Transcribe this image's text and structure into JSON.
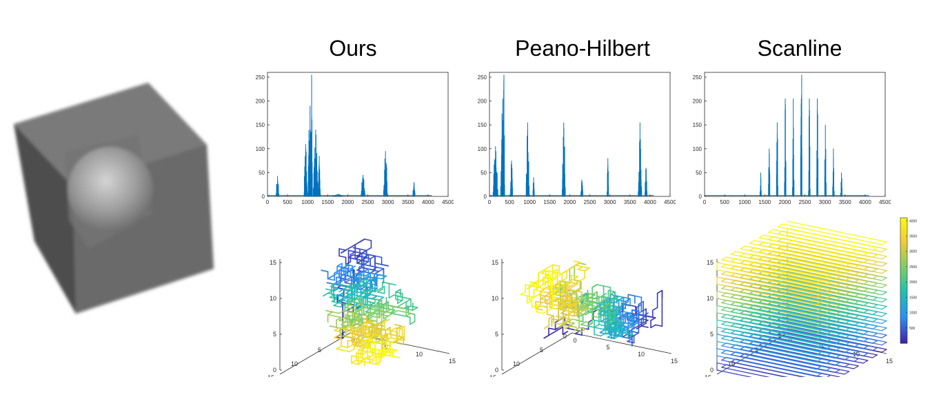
{
  "columns": [
    {
      "title": "Ours"
    },
    {
      "title": "Peano-Hilbert"
    },
    {
      "title": "Scanline"
    }
  ],
  "colorbar": {
    "ticks": [
      500,
      1000,
      1500,
      2000,
      2500,
      3000,
      3500,
      4000
    ],
    "range": [
      0,
      4096
    ],
    "colors": [
      "#3e26a8",
      "#2e8ef3",
      "#1fbfb5",
      "#7bcf63",
      "#f2c93a",
      "#f9fb0e"
    ]
  },
  "chart_data": [
    {
      "type": "bar",
      "panel": "Ours histogram",
      "xlim": [
        0,
        4500
      ],
      "ylim": [
        0,
        260
      ],
      "xticks": [
        0,
        500,
        1000,
        1500,
        2000,
        2500,
        3000,
        3500,
        4000,
        4500
      ],
      "yticks": [
        0,
        50,
        100,
        150,
        200,
        250
      ],
      "color": "#0072bd",
      "peaks": [
        {
          "x": 250,
          "width": 80,
          "height": 43
        },
        {
          "x": 950,
          "width": 80,
          "height": 110
        },
        {
          "x": 1060,
          "width": 110,
          "height": 190
        },
        {
          "x": 1100,
          "width": 40,
          "height": 255
        },
        {
          "x": 1200,
          "width": 120,
          "height": 140
        },
        {
          "x": 1290,
          "width": 60,
          "height": 85
        },
        {
          "x": 1750,
          "width": 300,
          "height": 5
        },
        {
          "x": 2380,
          "width": 100,
          "height": 45
        },
        {
          "x": 2940,
          "width": 100,
          "height": 95
        },
        {
          "x": 3650,
          "width": 60,
          "height": 30
        }
      ]
    },
    {
      "type": "bar",
      "panel": "Peano-Hilbert histogram",
      "xlim": [
        0,
        4500
      ],
      "ylim": [
        0,
        260
      ],
      "xticks": [
        0,
        500,
        1000,
        1500,
        2000,
        2500,
        3000,
        3500,
        4000,
        4500
      ],
      "yticks": [
        0,
        50,
        100,
        150,
        200,
        250
      ],
      "color": "#0072bd",
      "peaks": [
        {
          "x": 150,
          "width": 120,
          "height": 105
        },
        {
          "x": 330,
          "width": 100,
          "height": 205
        },
        {
          "x": 360,
          "width": 30,
          "height": 255
        },
        {
          "x": 550,
          "width": 60,
          "height": 75
        },
        {
          "x": 950,
          "width": 80,
          "height": 155
        },
        {
          "x": 1100,
          "width": 40,
          "height": 40
        },
        {
          "x": 1850,
          "width": 80,
          "height": 155
        },
        {
          "x": 2300,
          "width": 60,
          "height": 35
        },
        {
          "x": 2950,
          "width": 40,
          "height": 80
        },
        {
          "x": 3750,
          "width": 90,
          "height": 155
        },
        {
          "x": 3900,
          "width": 60,
          "height": 60
        }
      ]
    },
    {
      "type": "bar",
      "panel": "Scanline histogram",
      "xlim": [
        0,
        4500
      ],
      "ylim": [
        0,
        260
      ],
      "xticks": [
        0,
        500,
        1000,
        1500,
        2000,
        2500,
        3000,
        3500,
        4000,
        4500
      ],
      "yticks": [
        0,
        50,
        100,
        150,
        200,
        250
      ],
      "color": "#0072bd",
      "peaks": [
        {
          "x": 1400,
          "width": 40,
          "height": 50
        },
        {
          "x": 1610,
          "width": 40,
          "height": 100
        },
        {
          "x": 1810,
          "width": 40,
          "height": 155
        },
        {
          "x": 2010,
          "width": 40,
          "height": 205
        },
        {
          "x": 2210,
          "width": 40,
          "height": 205
        },
        {
          "x": 2410,
          "width": 40,
          "height": 205
        },
        {
          "x": 2420,
          "width": 10,
          "height": 255
        },
        {
          "x": 2610,
          "width": 40,
          "height": 205
        },
        {
          "x": 2810,
          "width": 40,
          "height": 205
        },
        {
          "x": 3010,
          "width": 40,
          "height": 150
        },
        {
          "x": 3210,
          "width": 40,
          "height": 100
        },
        {
          "x": 3410,
          "width": 40,
          "height": 50
        }
      ]
    },
    {
      "type": "line",
      "panel": "Ours 3D curve",
      "zticks": [
        0,
        5,
        10,
        15
      ],
      "xticks": [
        0,
        5,
        10,
        15
      ],
      "yticks": [
        0,
        5,
        10,
        15
      ]
    },
    {
      "type": "line",
      "panel": "Peano-Hilbert 3D curve",
      "zticks": [
        0,
        5,
        10,
        15
      ],
      "xticks": [
        0,
        5,
        10,
        15
      ],
      "yticks": [
        0,
        5,
        10,
        15
      ]
    },
    {
      "type": "line",
      "panel": "Scanline 3D curve",
      "zticks": [
        0,
        5,
        10,
        15
      ],
      "xticks": [
        0,
        5,
        10,
        15
      ],
      "yticks": [
        0,
        5,
        10,
        15
      ]
    }
  ]
}
